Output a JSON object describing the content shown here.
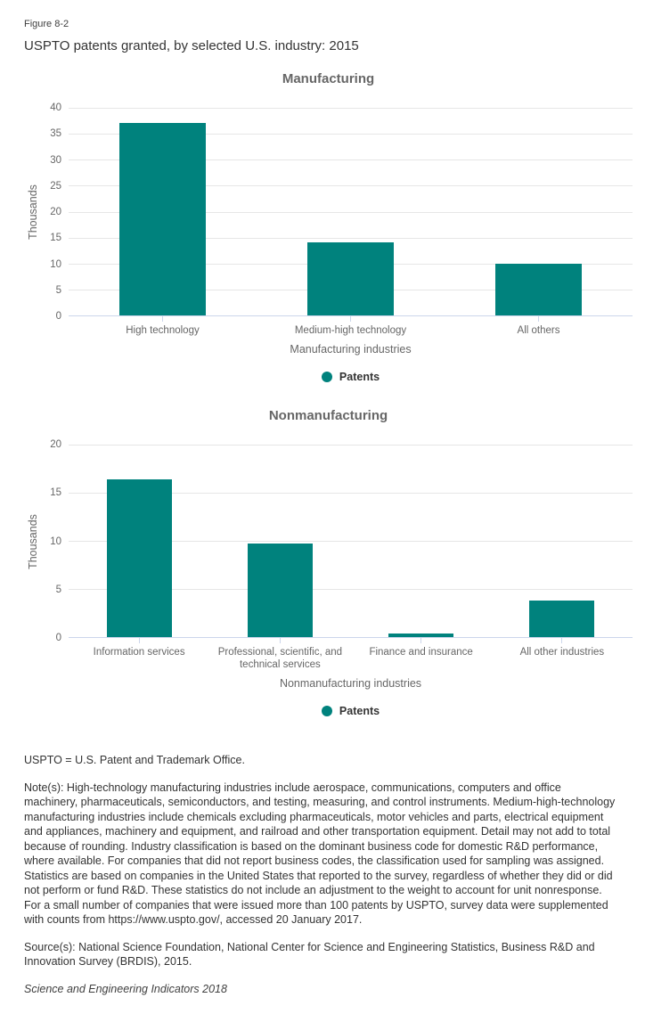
{
  "header": {
    "figure_label": "Figure 8-2",
    "title": "USPTO patents granted, by selected U.S. industry: 2015"
  },
  "colors": {
    "bar": "#00827D",
    "grid": "#E6E6E6",
    "axis": "#CCD6EB",
    "chart_title": "#666666",
    "text": "#333333"
  },
  "chart_data": [
    {
      "type": "bar",
      "title": "Manufacturing",
      "categories": [
        "High technology",
        "Medium-high technology",
        "All others"
      ],
      "values": [
        37.0,
        14.0,
        9.9
      ],
      "series_name": "Patents",
      "xlabel": "Manufacturing industries",
      "ylabel": "Thousands",
      "ylim": [
        0,
        40
      ],
      "yticks": [
        0,
        5,
        10,
        15,
        20,
        25,
        30,
        35,
        40
      ],
      "grid": true,
      "legend": {
        "label": "Patents",
        "position": "bottom-center"
      }
    },
    {
      "type": "bar",
      "title": "Nonmanufacturing",
      "categories": [
        "Information services",
        "Professional, scientific, and technical services",
        "Finance and insurance",
        "All other industries"
      ],
      "values": [
        16.3,
        9.7,
        0.4,
        3.8
      ],
      "series_name": "Patents",
      "xlabel": "Nonmanufacturing industries",
      "ylabel": "Thousands",
      "ylim": [
        0,
        20
      ],
      "yticks": [
        0,
        5,
        10,
        15,
        20
      ],
      "grid": true,
      "legend": {
        "label": "Patents",
        "position": "bottom-center"
      }
    }
  ],
  "footnotes": {
    "uspto": "USPTO = U.S. Patent and Trademark Office.",
    "notes": "Note(s): High-technology manufacturing industries include aerospace, communications, computers and office machinery, pharmaceuticals, semiconductors, and testing, measuring, and control instruments. Medium-high-technology manufacturing industries include chemicals excluding pharmaceuticals, motor vehicles and parts, electrical equipment and appliances, machinery and equipment, and railroad and other transportation equipment. Detail may not add to total because of rounding. Industry classification is based on the dominant business code for domestic R&D performance, where available. For companies that did not report business codes, the classification used for sampling was assigned. Statistics are based on companies in the United States that reported to the survey, regardless of whether they did or did not perform or fund R&D. These statistics do not include an adjustment to the weight to account for unit nonresponse. For a small number of companies that were issued more than 100 patents by USPTO, survey data were supplemented with counts from https://www.uspto.gov/, accessed 20 January 2017.",
    "source": "Source(s): National Science Foundation, National Center for Science and Engineering Statistics, Business R&D and Innovation Survey (BRDIS), 2015.",
    "attribution": "Science and Engineering Indicators 2018"
  }
}
